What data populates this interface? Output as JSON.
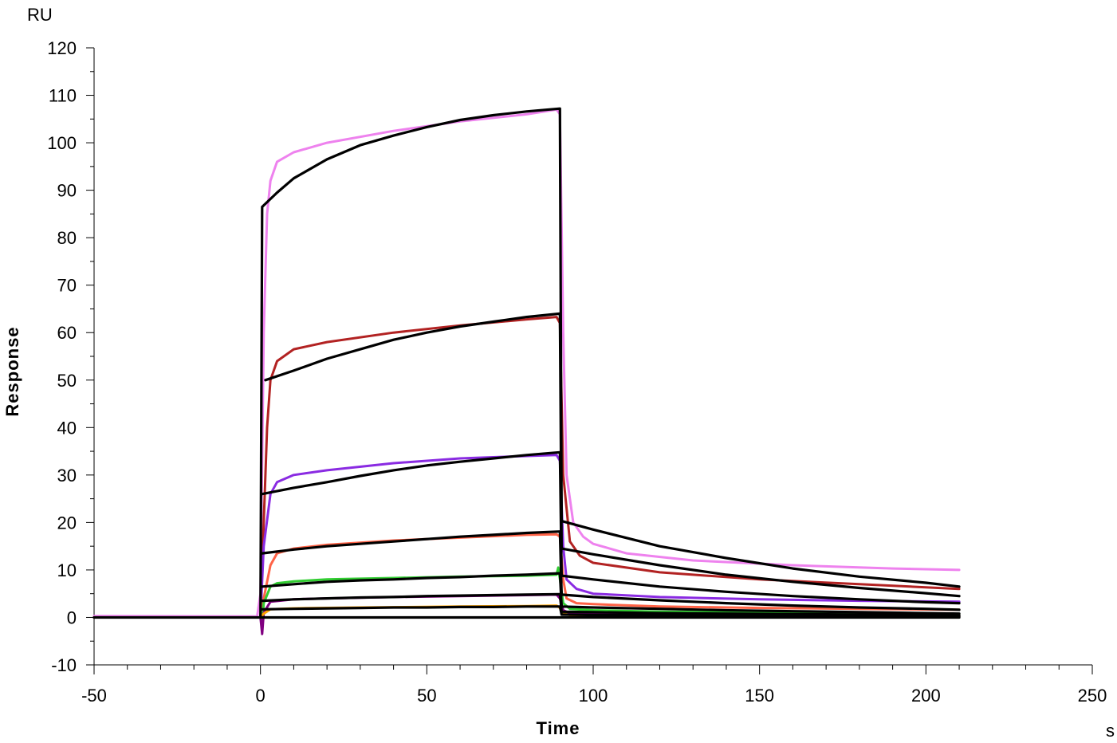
{
  "chart_data": {
    "type": "line",
    "title": "",
    "xlabel": "Time",
    "ylabel": "Response",
    "x_unit": "s",
    "y_unit": "RU",
    "xlim": [
      -50,
      250
    ],
    "ylim": [
      -10,
      120
    ],
    "x_ticks": [
      -50,
      0,
      50,
      100,
      150,
      200,
      250
    ],
    "x_tick_labels": [
      "-50",
      "0",
      "50",
      "100",
      "150",
      "200",
      "250"
    ],
    "y_ticks": [
      -10,
      0,
      10,
      20,
      30,
      40,
      50,
      60,
      70,
      80,
      90,
      100,
      110,
      120
    ],
    "y_tick_labels": [
      "-10",
      "0",
      "10",
      "20",
      "30",
      "40",
      "50",
      "60",
      "70",
      "80",
      "90",
      "100",
      "110",
      "120"
    ],
    "grid": false,
    "legend": "none",
    "series": [
      {
        "color": "#ee82ee",
        "kind": "measured",
        "points": [
          [
            -50,
            0.3
          ],
          [
            -1,
            0.2
          ],
          [
            0,
            5
          ],
          [
            1,
            60
          ],
          [
            2,
            85
          ],
          [
            3,
            92
          ],
          [
            5,
            96
          ],
          [
            10,
            98
          ],
          [
            20,
            100
          ],
          [
            40,
            102.5
          ],
          [
            60,
            104.5
          ],
          [
            80,
            106
          ],
          [
            89,
            107
          ],
          [
            90,
            106
          ],
          [
            91,
            60
          ],
          [
            92,
            30
          ],
          [
            94,
            20
          ],
          [
            97,
            17
          ],
          [
            100,
            15.5
          ],
          [
            110,
            13.5
          ],
          [
            130,
            12
          ],
          [
            160,
            11
          ],
          [
            190,
            10.3
          ],
          [
            210,
            10
          ]
        ]
      },
      {
        "color": "#000000",
        "kind": "fit",
        "points": [
          [
            0,
            0
          ],
          [
            0.5,
            86.5
          ],
          [
            5,
            89.5
          ],
          [
            10,
            92.5
          ],
          [
            20,
            96.5
          ],
          [
            30,
            99.5
          ],
          [
            40,
            101.5
          ],
          [
            50,
            103.3
          ],
          [
            60,
            104.8
          ],
          [
            70,
            105.8
          ],
          [
            80,
            106.6
          ],
          [
            90,
            107.2
          ],
          [
            90.5,
            20.3
          ],
          [
            100,
            18.5
          ],
          [
            120,
            15
          ],
          [
            140,
            12.5
          ],
          [
            160,
            10.3
          ],
          [
            180,
            8.6
          ],
          [
            200,
            7.3
          ],
          [
            210,
            6.5
          ]
        ]
      },
      {
        "color": "#b22222",
        "kind": "measured",
        "points": [
          [
            -50,
            0
          ],
          [
            0,
            0
          ],
          [
            1,
            20
          ],
          [
            2,
            40
          ],
          [
            3,
            50
          ],
          [
            5,
            54
          ],
          [
            10,
            56.5
          ],
          [
            20,
            58
          ],
          [
            40,
            60
          ],
          [
            60,
            61.5
          ],
          [
            80,
            62.8
          ],
          [
            89,
            63.3
          ],
          [
            90,
            62
          ],
          [
            91,
            30
          ],
          [
            93,
            16
          ],
          [
            96,
            13
          ],
          [
            100,
            11.5
          ],
          [
            120,
            9.5
          ],
          [
            150,
            8
          ],
          [
            180,
            7
          ],
          [
            210,
            6
          ]
        ]
      },
      {
        "color": "#000000",
        "kind": "fit",
        "points": [
          [
            1.5,
            50
          ],
          [
            10,
            52
          ],
          [
            20,
            54.5
          ],
          [
            30,
            56.5
          ],
          [
            40,
            58.5
          ],
          [
            50,
            60
          ],
          [
            60,
            61.3
          ],
          [
            70,
            62.3
          ],
          [
            80,
            63.3
          ],
          [
            90,
            64
          ],
          [
            90.5,
            14.5
          ],
          [
            100,
            13.3
          ],
          [
            120,
            11
          ],
          [
            140,
            9
          ],
          [
            160,
            7.5
          ],
          [
            180,
            6.2
          ],
          [
            200,
            5.1
          ],
          [
            210,
            4.5
          ]
        ]
      },
      {
        "color": "#8a2be2",
        "kind": "measured",
        "points": [
          [
            -50,
            0
          ],
          [
            0,
            0
          ],
          [
            1,
            15
          ],
          [
            3,
            26
          ],
          [
            5,
            28.5
          ],
          [
            10,
            30
          ],
          [
            20,
            31
          ],
          [
            40,
            32.5
          ],
          [
            60,
            33.5
          ],
          [
            80,
            34
          ],
          [
            89,
            34.2
          ],
          [
            90,
            33
          ],
          [
            91,
            15
          ],
          [
            92,
            8
          ],
          [
            95,
            6
          ],
          [
            100,
            5
          ],
          [
            120,
            4.3
          ],
          [
            150,
            3.8
          ],
          [
            180,
            3.5
          ],
          [
            210,
            3.3
          ]
        ]
      },
      {
        "color": "#000000",
        "kind": "fit",
        "points": [
          [
            0.5,
            26
          ],
          [
            10,
            27.3
          ],
          [
            20,
            28.5
          ],
          [
            30,
            29.8
          ],
          [
            40,
            31
          ],
          [
            50,
            32
          ],
          [
            60,
            32.8
          ],
          [
            70,
            33.5
          ],
          [
            80,
            34.2
          ],
          [
            90,
            34.8
          ],
          [
            90.5,
            8.8
          ],
          [
            100,
            8
          ],
          [
            120,
            6.5
          ],
          [
            140,
            5.4
          ],
          [
            160,
            4.5
          ],
          [
            180,
            3.8
          ],
          [
            200,
            3.2
          ],
          [
            210,
            3
          ]
        ]
      },
      {
        "color": "#ff6347",
        "kind": "measured",
        "points": [
          [
            -50,
            0
          ],
          [
            0,
            0
          ],
          [
            1,
            4
          ],
          [
            3,
            11
          ],
          [
            5,
            13.5
          ],
          [
            10,
            14.5
          ],
          [
            20,
            15.3
          ],
          [
            40,
            16.2
          ],
          [
            60,
            16.8
          ],
          [
            80,
            17.4
          ],
          [
            89,
            17.5
          ],
          [
            90,
            17
          ],
          [
            91,
            8
          ],
          [
            92,
            4
          ],
          [
            95,
            3
          ],
          [
            100,
            2.8
          ],
          [
            120,
            2.3
          ],
          [
            150,
            2
          ],
          [
            180,
            1.8
          ],
          [
            210,
            1.6
          ]
        ]
      },
      {
        "color": "#000000",
        "kind": "fit",
        "points": [
          [
            0.5,
            13.5
          ],
          [
            10,
            14.3
          ],
          [
            20,
            15
          ],
          [
            30,
            15.5
          ],
          [
            40,
            16
          ],
          [
            50,
            16.5
          ],
          [
            60,
            17
          ],
          [
            70,
            17.4
          ],
          [
            80,
            17.8
          ],
          [
            90,
            18.1
          ],
          [
            90.5,
            4.8
          ],
          [
            100,
            4.3
          ],
          [
            120,
            3.6
          ],
          [
            140,
            3
          ],
          [
            160,
            2.5
          ],
          [
            180,
            2.1
          ],
          [
            200,
            1.8
          ],
          [
            210,
            1.6
          ]
        ]
      },
      {
        "color": "#32cd32",
        "kind": "measured",
        "points": [
          [
            -50,
            0
          ],
          [
            0,
            0
          ],
          [
            0.5,
            -1.5
          ],
          [
            1,
            3
          ],
          [
            3,
            6.5
          ],
          [
            5,
            7.2
          ],
          [
            10,
            7.6
          ],
          [
            20,
            8
          ],
          [
            40,
            8.3
          ],
          [
            60,
            8.6
          ],
          [
            80,
            8.8
          ],
          [
            89,
            9
          ],
          [
            89.5,
            10.5
          ],
          [
            90,
            8
          ],
          [
            91,
            3
          ],
          [
            93,
            1.8
          ],
          [
            100,
            1.5
          ],
          [
            120,
            1.2
          ],
          [
            150,
            1
          ],
          [
            180,
            0.8
          ],
          [
            210,
            0.7
          ]
        ]
      },
      {
        "color": "#000000",
        "kind": "fit",
        "points": [
          [
            0.5,
            6.5
          ],
          [
            10,
            7
          ],
          [
            20,
            7.5
          ],
          [
            30,
            7.8
          ],
          [
            40,
            8
          ],
          [
            50,
            8.3
          ],
          [
            60,
            8.5
          ],
          [
            70,
            8.8
          ],
          [
            80,
            9
          ],
          [
            90,
            9.3
          ],
          [
            90.5,
            2.3
          ],
          [
            100,
            2.1
          ],
          [
            120,
            1.8
          ],
          [
            140,
            1.5
          ],
          [
            160,
            1.3
          ],
          [
            180,
            1.1
          ],
          [
            200,
            0.9
          ],
          [
            210,
            0.8
          ]
        ]
      },
      {
        "color": "#800080",
        "kind": "measured",
        "points": [
          [
            -50,
            0
          ],
          [
            0,
            0
          ],
          [
            0.5,
            -3.5
          ],
          [
            1,
            1
          ],
          [
            3,
            3.3
          ],
          [
            10,
            3.8
          ],
          [
            20,
            4
          ],
          [
            40,
            4.3
          ],
          [
            60,
            4.5
          ],
          [
            80,
            4.7
          ],
          [
            89,
            4.8
          ],
          [
            90,
            4
          ],
          [
            91,
            1.5
          ],
          [
            93,
            0.9
          ],
          [
            100,
            0.8
          ],
          [
            150,
            0.6
          ],
          [
            210,
            0.4
          ]
        ]
      },
      {
        "color": "#000000",
        "kind": "fit",
        "points": [
          [
            0.5,
            3.5
          ],
          [
            10,
            3.8
          ],
          [
            20,
            4
          ],
          [
            30,
            4.2
          ],
          [
            40,
            4.3
          ],
          [
            50,
            4.5
          ],
          [
            60,
            4.6
          ],
          [
            70,
            4.7
          ],
          [
            80,
            4.8
          ],
          [
            90,
            4.9
          ],
          [
            90.5,
            1.2
          ],
          [
            100,
            1.1
          ],
          [
            120,
            0.9
          ],
          [
            140,
            0.8
          ],
          [
            160,
            0.7
          ],
          [
            180,
            0.6
          ],
          [
            200,
            0.5
          ],
          [
            210,
            0.4
          ]
        ]
      },
      {
        "color": "#ffa500",
        "kind": "measured",
        "points": [
          [
            -50,
            0
          ],
          [
            0,
            0
          ],
          [
            1,
            0.8
          ],
          [
            3,
            1.7
          ],
          [
            10,
            1.9
          ],
          [
            30,
            2.1
          ],
          [
            60,
            2.3
          ],
          [
            80,
            2.4
          ],
          [
            89,
            2.5
          ],
          [
            90,
            2
          ],
          [
            91,
            0.8
          ],
          [
            93,
            0.5
          ],
          [
            150,
            0.3
          ],
          [
            210,
            0.2
          ]
        ]
      },
      {
        "color": "#000000",
        "kind": "fit",
        "points": [
          [
            0.5,
            1.7
          ],
          [
            10,
            1.8
          ],
          [
            20,
            1.9
          ],
          [
            30,
            2
          ],
          [
            40,
            2.1
          ],
          [
            50,
            2.1
          ],
          [
            60,
            2.2
          ],
          [
            70,
            2.2
          ],
          [
            80,
            2.3
          ],
          [
            90,
            2.3
          ],
          [
            90.5,
            0.6
          ],
          [
            100,
            0.5
          ],
          [
            120,
            0.5
          ],
          [
            140,
            0.4
          ],
          [
            160,
            0.3
          ],
          [
            180,
            0.3
          ],
          [
            200,
            0.2
          ],
          [
            210,
            0.2
          ]
        ]
      },
      {
        "color": "#000000",
        "kind": "fit",
        "points": [
          [
            -50,
            0
          ],
          [
            -1,
            0
          ],
          [
            90,
            0
          ],
          [
            90.5,
            0
          ],
          [
            210,
            0
          ]
        ]
      }
    ]
  }
}
